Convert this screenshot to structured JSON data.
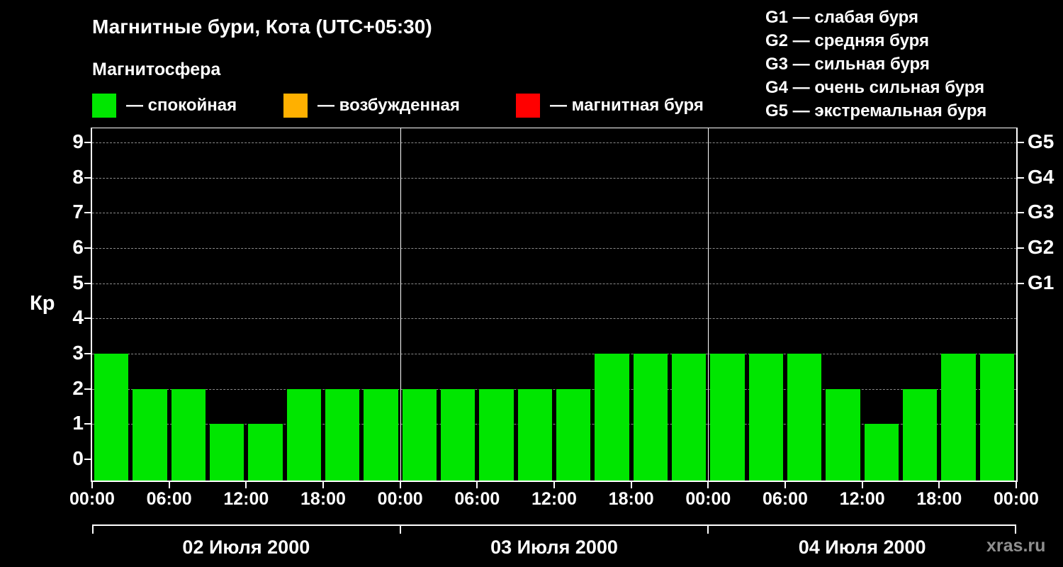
{
  "header": {
    "title": "Магнитные бури, Кота (UTC+05:30)",
    "subtitle": "Магнитосфера"
  },
  "legend": {
    "items": [
      {
        "label": "— спокойная",
        "color": "#00e600"
      },
      {
        "label": "— возбужденная",
        "color": "#ffb000"
      },
      {
        "label": "— магнитная буря",
        "color": "#ff0000"
      }
    ]
  },
  "storm_scale": {
    "items": [
      {
        "label": "G1 — слабая буря"
      },
      {
        "label": "G2 — средняя буря"
      },
      {
        "label": "G3 — сильная буря"
      },
      {
        "label": "G4 — очень сильная буря"
      },
      {
        "label": "G5 — экстремальная буря"
      }
    ]
  },
  "chart_data": {
    "type": "bar",
    "title": "Магнитные бури, Кота (UTC+05:30)",
    "ylabel": "Кр",
    "ylim": [
      0,
      9.6
    ],
    "yticks": [
      0,
      1,
      2,
      3,
      4,
      5,
      6,
      7,
      8,
      9
    ],
    "grid": "horizontal-dashed",
    "bar_interval_hours": 3,
    "right_axis_labels": [
      {
        "kp": 5,
        "label": "G1"
      },
      {
        "kp": 6,
        "label": "G2"
      },
      {
        "kp": 7,
        "label": "G3"
      },
      {
        "kp": 8,
        "label": "G4"
      },
      {
        "kp": 9,
        "label": "G5"
      }
    ],
    "x_time_labels": [
      "00:00",
      "06:00",
      "12:00",
      "18:00",
      "00:00",
      "06:00",
      "12:00",
      "18:00",
      "00:00",
      "06:00",
      "12:00",
      "18:00",
      "00:00"
    ],
    "days": [
      {
        "date": "02 Июля 2000",
        "values": [
          3,
          2,
          2,
          1,
          1,
          2,
          2,
          2
        ]
      },
      {
        "date": "03 Июля 2000",
        "values": [
          2,
          2,
          2,
          2,
          2,
          3,
          3,
          3
        ]
      },
      {
        "date": "04 Июля 2000",
        "values": [
          3,
          3,
          3,
          2,
          1,
          2,
          3,
          3
        ]
      }
    ],
    "thresholds": {
      "excited_min": 4,
      "storm_min": 5
    },
    "colors": {
      "quiet": "#00e600",
      "excited": "#ffb000",
      "storm": "#ff0000"
    }
  },
  "footer": {
    "watermark": "xras.ru"
  }
}
